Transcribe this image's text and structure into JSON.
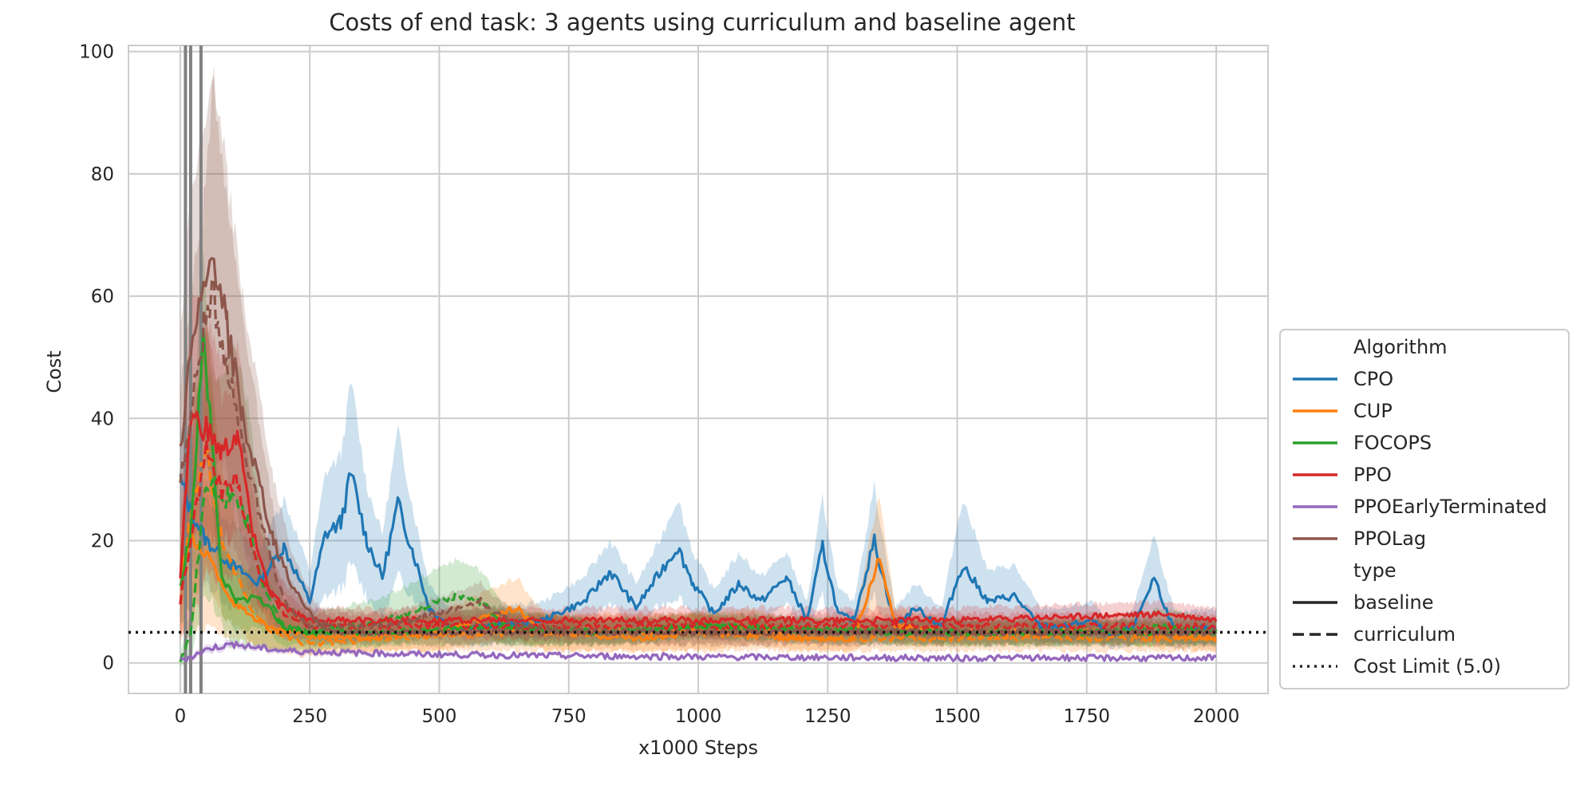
{
  "chart_data": {
    "type": "line",
    "title": "Costs of end task: 3 agents using curriculum and baseline agent",
    "xlabel": "x1000 Steps",
    "ylabel": "Cost",
    "xlim": [
      -100,
      2100
    ],
    "ylim": [
      -5,
      101
    ],
    "xticks": [
      0,
      250,
      500,
      750,
      1000,
      1250,
      1500,
      1750,
      2000
    ],
    "yticks": [
      0,
      20,
      40,
      60,
      80,
      100
    ],
    "grid": true,
    "legend_position": "right",
    "legend": {
      "algorithm_header": "Algorithm",
      "algorithms": [
        {
          "name": "CPO",
          "color": "#1f77b4"
        },
        {
          "name": "CUP",
          "color": "#ff7f0e"
        },
        {
          "name": "FOCOPS",
          "color": "#2ca02c"
        },
        {
          "name": "PPO",
          "color": "#d62728"
        },
        {
          "name": "PPOEarlyTerminated",
          "color": "#9467bd"
        },
        {
          "name": "PPOLag",
          "color": "#8c564b"
        }
      ],
      "type_header": "type",
      "types": [
        {
          "name": "baseline",
          "dash": "solid"
        },
        {
          "name": "curriculum",
          "dash": "dashed"
        },
        {
          "name": "Cost Limit (5.0)",
          "dash": "dotted"
        }
      ]
    },
    "cost_limit": 5.0,
    "vlines": [
      10,
      20,
      40
    ],
    "series": [
      {
        "name": "CPO",
        "type": "baseline",
        "color": "#1f77b4",
        "x": [
          0,
          20,
          50,
          100,
          150,
          200,
          250,
          280,
          310,
          330,
          360,
          390,
          420,
          450,
          480,
          520,
          600,
          700,
          780,
          830,
          880,
          920,
          960,
          990,
          1030,
          1080,
          1120,
          1170,
          1210,
          1240,
          1270,
          1300,
          1340,
          1380,
          1420,
          1470,
          1510,
          1560,
          1610,
          1660,
          1710,
          1760,
          1800,
          1840,
          1880,
          1920,
          2000
        ],
        "values": [
          30,
          25,
          20,
          16,
          13,
          19,
          10,
          21,
          23,
          31,
          20,
          14,
          26,
          18,
          9,
          6,
          6,
          7,
          10,
          15,
          9,
          14,
          19,
          13,
          8,
          13,
          10,
          14,
          7,
          19,
          8,
          7,
          20,
          6,
          9,
          6,
          16,
          10,
          11,
          6,
          6,
          7,
          4,
          6,
          14,
          5,
          6
        ],
        "band": [
          8,
          8,
          7,
          7,
          5,
          8,
          5,
          10,
          11,
          15,
          9,
          7,
          12,
          7,
          4,
          3,
          3,
          3,
          4,
          5,
          4,
          5,
          8,
          5,
          4,
          5,
          4,
          4,
          3,
          8,
          4,
          3,
          9,
          3,
          4,
          3,
          11,
          5,
          5,
          3,
          3,
          3,
          2,
          3,
          7,
          3,
          3
        ]
      },
      {
        "name": "CUP",
        "type": "baseline",
        "color": "#ff7f0e",
        "x": [
          0,
          20,
          50,
          100,
          150,
          200,
          300,
          500,
          650,
          700,
          900,
          1000,
          1200,
          1300,
          1330,
          1350,
          1380,
          1500,
          1800,
          2000
        ],
        "values": [
          15,
          20,
          18,
          10,
          7,
          5,
          4,
          5,
          9,
          5,
          4,
          5,
          4,
          4,
          12,
          17,
          6,
          5,
          5,
          4
        ],
        "band": [
          10,
          15,
          12,
          6,
          4,
          3,
          2,
          3,
          5,
          3,
          2,
          3,
          2,
          2,
          8,
          10,
          3,
          2,
          2,
          2
        ]
      },
      {
        "name": "CUP",
        "type": "curriculum",
        "color": "#ff7f0e",
        "x": [
          0,
          20,
          50,
          80,
          110,
          140,
          180,
          250,
          400,
          650,
          1000,
          1100,
          1200,
          1500,
          2000
        ],
        "values": [
          10,
          25,
          35,
          20,
          14,
          8,
          5,
          3,
          4,
          5,
          5,
          6,
          4,
          4,
          4
        ],
        "band": [
          6,
          15,
          20,
          12,
          8,
          5,
          3,
          2,
          2,
          3,
          3,
          3,
          2,
          2,
          2
        ]
      },
      {
        "name": "FOCOPS",
        "type": "baseline",
        "color": "#2ca02c",
        "x": [
          0,
          20,
          45,
          80,
          110,
          150,
          200,
          250,
          400,
          600,
          800,
          1000,
          1400,
          1800,
          1900,
          2000
        ],
        "values": [
          12,
          22,
          55,
          14,
          10,
          11,
          6,
          5,
          5,
          6,
          5,
          6,
          5,
          5,
          6,
          5
        ],
        "band": [
          6,
          12,
          13,
          6,
          5,
          5,
          3,
          2,
          2,
          3,
          2,
          2,
          2,
          2,
          3,
          2
        ]
      },
      {
        "name": "FOCOPS",
        "type": "curriculum",
        "color": "#2ca02c",
        "x": [
          0,
          20,
          50,
          80,
          100,
          130,
          160,
          200,
          250,
          400,
          530,
          580,
          630,
          800,
          1000,
          1400,
          2000
        ],
        "values": [
          0,
          5,
          30,
          26,
          28,
          23,
          12,
          6,
          5,
          7,
          11,
          10,
          6,
          5,
          6,
          5,
          5
        ],
        "band": [
          1,
          4,
          18,
          20,
          25,
          20,
          10,
          4,
          3,
          4,
          6,
          5,
          3,
          2,
          2,
          2,
          2
        ]
      },
      {
        "name": "PPO",
        "type": "baseline",
        "color": "#d62728",
        "x": [
          0,
          20,
          50,
          80,
          110,
          140,
          170,
          200,
          250,
          500,
          1000,
          1500,
          1900,
          2000
        ],
        "values": [
          14,
          40,
          38,
          34,
          37,
          22,
          12,
          9,
          7,
          7,
          7,
          7,
          8,
          7
        ],
        "band": [
          8,
          20,
          18,
          15,
          15,
          10,
          6,
          4,
          2,
          2,
          2,
          2,
          2,
          2
        ]
      },
      {
        "name": "PPO",
        "type": "curriculum",
        "color": "#d62728",
        "x": [
          0,
          20,
          50,
          80,
          110,
          150,
          200,
          250,
          500,
          1000,
          1500,
          2000
        ],
        "values": [
          10,
          20,
          35,
          28,
          30,
          15,
          8,
          6,
          6,
          6,
          6,
          6
        ],
        "band": [
          6,
          15,
          20,
          15,
          15,
          8,
          4,
          2,
          2,
          2,
          2,
          2
        ]
      },
      {
        "name": "PPOEarlyTerminated",
        "type": "baseline",
        "color": "#9467bd",
        "x": [
          0,
          20,
          60,
          100,
          200,
          400,
          700,
          1000,
          1500,
          2000
        ],
        "values": [
          0.5,
          1,
          2.5,
          3,
          2,
          1.5,
          1.2,
          1,
          0.8,
          0.8
        ],
        "band": [
          0.3,
          0.5,
          0.7,
          0.6,
          0.5,
          0.4,
          0.3,
          0.3,
          0.3,
          0.3
        ]
      },
      {
        "name": "PPOLag",
        "type": "baseline",
        "color": "#8c564b",
        "x": [
          0,
          20,
          45,
          65,
          90,
          120,
          150,
          180,
          220,
          260,
          300,
          400,
          600,
          800,
          1000,
          1500,
          2000
        ],
        "values": [
          35,
          50,
          60,
          67,
          55,
          40,
          30,
          20,
          12,
          7,
          5,
          5,
          5,
          5,
          5,
          5,
          5
        ],
        "band": [
          20,
          25,
          25,
          30,
          25,
          20,
          15,
          10,
          5,
          3,
          2,
          2,
          2,
          2,
          2,
          2,
          2
        ]
      },
      {
        "name": "PPOLag",
        "type": "curriculum",
        "color": "#8c564b",
        "x": [
          0,
          20,
          45,
          65,
          100,
          150,
          200,
          250,
          400,
          580,
          650,
          800,
          1000,
          1500,
          2000
        ],
        "values": [
          30,
          40,
          55,
          60,
          45,
          25,
          10,
          6,
          6,
          10,
          6,
          5,
          5,
          5,
          5
        ],
        "band": [
          15,
          20,
          20,
          35,
          25,
          15,
          5,
          3,
          2,
          3,
          2,
          2,
          2,
          2,
          2
        ]
      }
    ]
  }
}
